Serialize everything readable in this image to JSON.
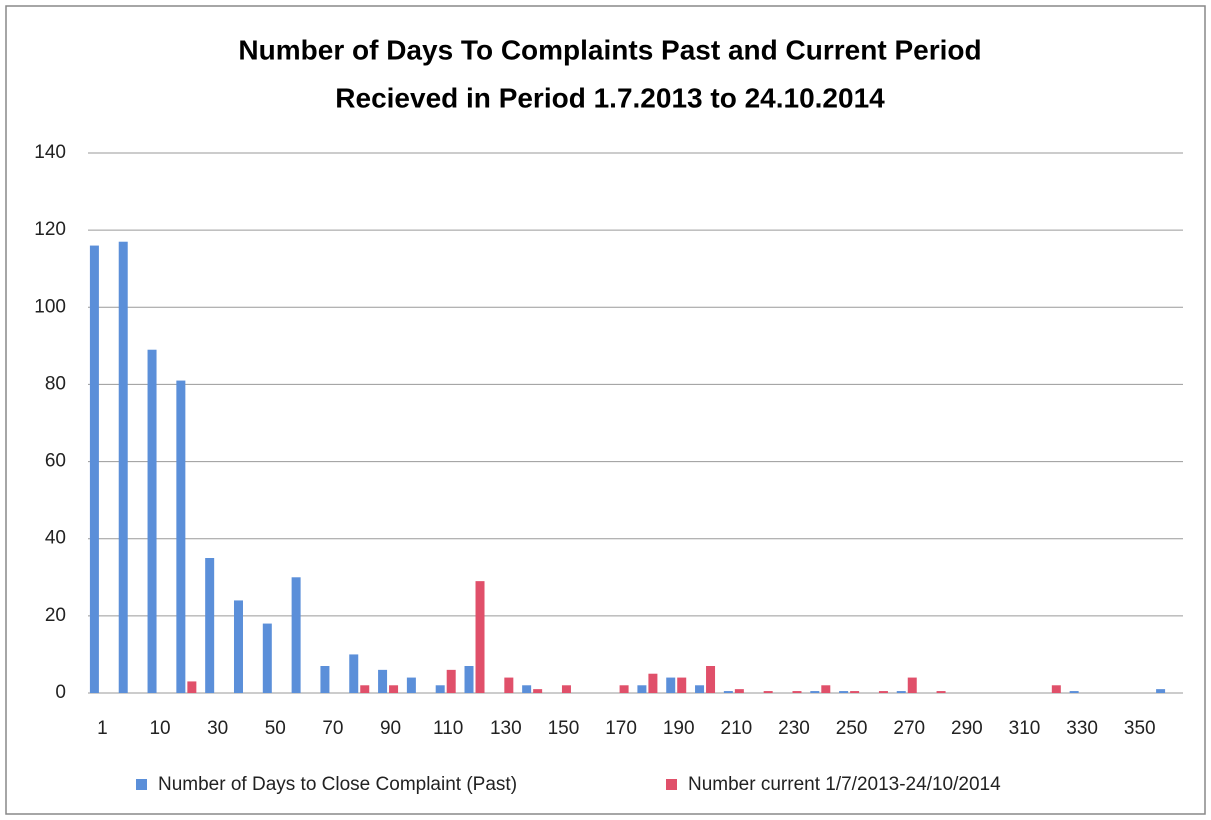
{
  "chart_data": {
    "type": "bar",
    "title": [
      "Number of Days To Complaints Past and Current Period",
      "Recieved in Period 1.7.2013 to 24.10.2014"
    ],
    "categories": [
      "1",
      null,
      "10",
      null,
      "30",
      null,
      "50",
      null,
      "70",
      null,
      "90",
      null,
      "110",
      null,
      "130",
      null,
      "150",
      null,
      "170",
      null,
      "190",
      null,
      "210",
      null,
      "230",
      null,
      "250",
      null,
      "270",
      null,
      "290",
      null,
      "310",
      null,
      "330",
      null,
      "350",
      null
    ],
    "series": [
      {
        "name": "Number of Days to Close Complaint (Past)",
        "color": "#5b8fd9",
        "values": [
          116,
          117,
          89,
          81,
          35,
          24,
          18,
          30,
          7,
          10,
          6,
          4,
          2,
          7,
          0,
          2,
          0,
          0,
          0,
          2,
          4,
          2,
          0.5,
          0,
          0,
          0.5,
          0.5,
          0,
          0.5,
          0,
          0,
          0,
          0,
          0,
          0.5,
          0,
          0,
          1
        ]
      },
      {
        "name": "Number current 1/7/2013-24/10/2014",
        "color": "#e0506a",
        "values": [
          0,
          0,
          0,
          3,
          0,
          0,
          0,
          0,
          0,
          2,
          2,
          0,
          6,
          29,
          4,
          1,
          2,
          0,
          2,
          5,
          4,
          7,
          1,
          0.5,
          0.5,
          2,
          0.5,
          0.5,
          4,
          0.5,
          0,
          0,
          0,
          2,
          0,
          0,
          0,
          0
        ]
      }
    ],
    "ylim": [
      0,
      140
    ],
    "yticks": [
      0,
      20,
      40,
      60,
      80,
      100,
      120,
      140
    ],
    "grid": true,
    "legend": "bottom"
  }
}
